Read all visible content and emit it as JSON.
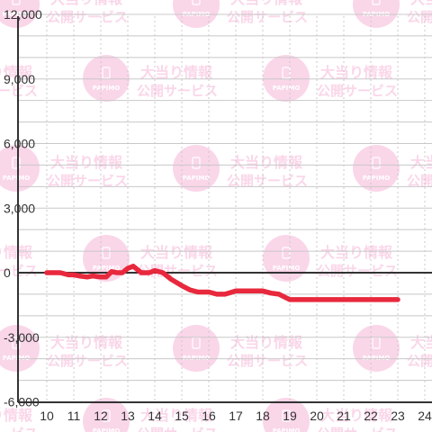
{
  "chart_data": {
    "type": "line",
    "x": [
      10,
      10.3,
      10.5,
      10.8,
      11,
      11.2,
      11.5,
      11.7,
      12,
      12.2,
      12.4,
      12.6,
      12.8,
      13,
      13.2,
      13.5,
      13.8,
      14,
      14.3,
      14.6,
      15,
      15.3,
      15.6,
      16,
      16.3,
      16.6,
      17,
      17.3,
      17.6,
      18,
      18.3,
      18.6,
      19,
      19.5,
      20,
      21,
      22,
      23
    ],
    "y": [
      0,
      0,
      0,
      -100,
      -100,
      -150,
      -200,
      -150,
      -200,
      -200,
      50,
      0,
      0,
      200,
      300,
      0,
      0,
      100,
      0,
      -300,
      -600,
      -800,
      -900,
      -900,
      -1000,
      -1000,
      -850,
      -850,
      -850,
      -850,
      -950,
      -1000,
      -1250,
      -1250,
      -1250,
      -1250,
      -1250,
      -1250
    ],
    "ylim": [
      -6000,
      12000
    ],
    "xlim": [
      9.5,
      24.5
    ],
    "yticks": [
      "-6,000",
      "-3,000",
      "0",
      "3,000",
      "6,000",
      "9,000",
      "12,000"
    ],
    "ytick_values": [
      -6000,
      -3000,
      0,
      3000,
      6000,
      9000,
      12000
    ],
    "xticks": [
      "10",
      "11",
      "12",
      "13",
      "14",
      "15",
      "16",
      "17",
      "18",
      "19",
      "20",
      "21",
      "22",
      "23",
      "24"
    ],
    "xtick_values": [
      10,
      11,
      12,
      13,
      14,
      15,
      16,
      17,
      18,
      19,
      20,
      21,
      22,
      23,
      24
    ],
    "grid": true,
    "line_color": "#e8283c"
  },
  "watermark": {
    "logo_text": "PAPIMO",
    "line1": "大当り情報",
    "line2": "公開サービス",
    "color": "#f7b6d8"
  },
  "colors": {
    "background": "#ffffff",
    "grid": "#c8c8c8",
    "axis": "#333333"
  }
}
